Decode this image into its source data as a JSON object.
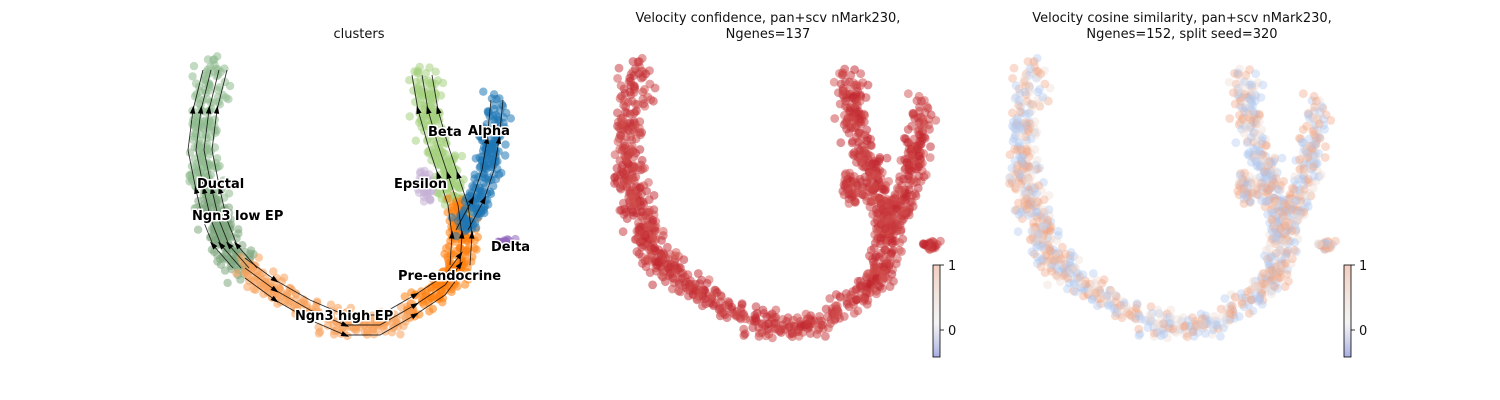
{
  "chart_data": [
    {
      "type": "scatter",
      "title": "clusters",
      "clusters": [
        {
          "name": "Ductal",
          "color": "#8fbc8f"
        },
        {
          "name": "Ngn3 low EP",
          "color": "#7fa87f"
        },
        {
          "name": "Ngn3 high EP",
          "color": "#f7a35c"
        },
        {
          "name": "Pre-endocrine",
          "color": "#ff7f0e"
        },
        {
          "name": "Beta",
          "color": "#a6d27f"
        },
        {
          "name": "Alpha",
          "color": "#1f77b4"
        },
        {
          "name": "Delta",
          "color": "#9467bd"
        },
        {
          "name": "Epsilon",
          "color": "#c5b0d5"
        }
      ],
      "streamlines": true
    },
    {
      "type": "scatter",
      "title": "Velocity confidence, pan+scv nMark230,\nNgenes=137",
      "colorbar": {
        "ticks": [
          "0",
          "1"
        ],
        "cmap": "coolwarm"
      }
    },
    {
      "type": "scatter",
      "title": "Velocity cosine similarity, pan+scv nMark230,\nNgenes=152, split seed=320",
      "colorbar": {
        "ticks": [
          "0",
          "1"
        ],
        "cmap": "coolwarm"
      }
    }
  ]
}
